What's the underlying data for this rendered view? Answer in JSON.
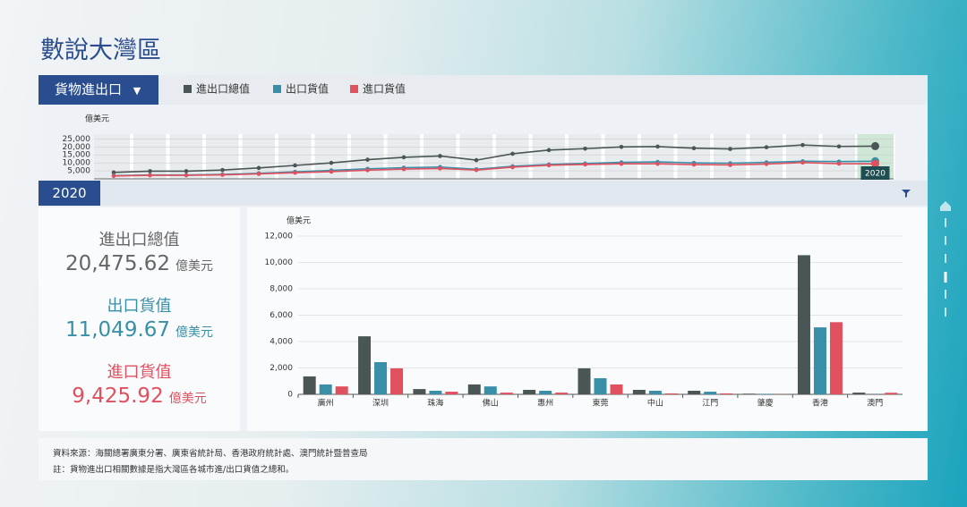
{
  "page_title": "數說大灣區",
  "dropdown": "貨物進出口",
  "selected_year": "2020",
  "summary": [
    {
      "label": "進出口總值",
      "value": "20,475.62",
      "unit": "億美元"
    },
    {
      "label": "出口貨值",
      "value": "11,049.67",
      "unit": "億美元"
    },
    {
      "label": "進口貨值",
      "value": "9,425.92",
      "unit": "億美元"
    }
  ],
  "footer": [
    "資料來源：海關總署廣東分署、廣東省統計局、香港政府統計處、澳門統計暨普查局",
    "註：貨物進出口相關數據是指大灣區各城市進/出口貨值之總和。"
  ],
  "chart_data": [
    {
      "type": "line",
      "y_label": "億美元",
      "categories": [
        null,
        null,
        null,
        null,
        null,
        null,
        null,
        null,
        null,
        null,
        null,
        null,
        null,
        null,
        null,
        null,
        null,
        null,
        null,
        null,
        null,
        "2020"
      ],
      "series": [
        {
          "name": "進出口總值",
          "color": "#4a5556",
          "values": [
            4000,
            4800,
            4800,
            5500,
            6800,
            8400,
            10000,
            12000,
            13500,
            14300,
            11700,
            15700,
            18000,
            18900,
            20000,
            20200,
            19200,
            18700,
            19800,
            21200,
            20300,
            20475.62
          ]
        },
        {
          "name": "出口貨值",
          "color": "#3a8fa8",
          "values": [
            2000,
            2400,
            2400,
            2800,
            3500,
            4400,
            5300,
            6300,
            7000,
            7400,
            6000,
            7900,
            9000,
            9600,
            10300,
            10600,
            10000,
            9800,
            10300,
            11000,
            10800,
            11049.67
          ]
        },
        {
          "name": "進口貨值",
          "color": "#e0505f",
          "values": [
            1800,
            2200,
            2200,
            2500,
            3100,
            3800,
            4500,
            5400,
            6100,
            6500,
            5500,
            7300,
            8500,
            9000,
            9400,
            9400,
            8900,
            8700,
            9300,
            10200,
            9500,
            9425.92
          ]
        }
      ],
      "ylim": [
        0,
        28000
      ],
      "yticks": [
        {
          "value": 5000,
          "label": "5,000"
        },
        {
          "value": 10000,
          "label": "10,000"
        },
        {
          "value": 15000,
          "label": "15,000"
        },
        {
          "value": 20000,
          "label": "20,000"
        },
        {
          "value": 25000,
          "label": "25,000"
        }
      ],
      "grid": true
    },
    {
      "type": "bar",
      "y_label": "億美元",
      "categories": [
        "廣州",
        "深圳",
        "珠海",
        "佛山",
        "惠州",
        "東莞",
        "中山",
        "江門",
        "肇慶",
        "香港",
        "澳門"
      ],
      "series": [
        {
          "color": "#4a5556",
          "values": [
            1360,
            4400,
            400,
            750,
            340,
            1970,
            340,
            270,
            50,
            10550,
            130
          ]
        },
        {
          "color": "#3a8fa8",
          "values": [
            750,
            2440,
            270,
            600,
            270,
            1220,
            270,
            200,
            40,
            5080,
            10
          ]
        },
        {
          "color": "#e0505f",
          "values": [
            600,
            1970,
            200,
            130,
            130,
            750,
            70,
            70,
            10,
            5470,
            120
          ]
        }
      ],
      "ylim": [
        0,
        12000
      ],
      "yticks": [
        0,
        {
          "value": 2000,
          "label": "2,000"
        },
        {
          "value": 4000,
          "label": "4,000"
        },
        {
          "value": 6000,
          "label": "6,000"
        },
        {
          "value": 8000,
          "label": "8,000"
        },
        {
          "value": 10000,
          "label": "10,000"
        },
        {
          "value": 12000,
          "label": "12,000"
        }
      ],
      "grid": true
    }
  ]
}
